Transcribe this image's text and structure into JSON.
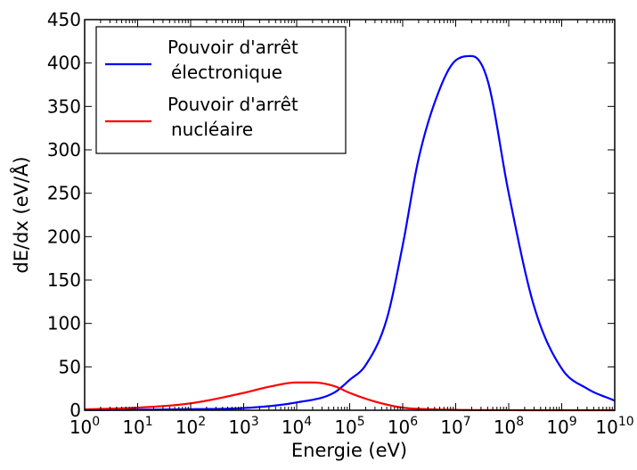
{
  "chart_data": {
    "type": "line",
    "xscale": "log",
    "xlim": [
      1,
      10000000000
    ],
    "ylim": [
      0,
      450
    ],
    "xlabel": "Energie (eV)",
    "ylabel": "dE/dx (eV/Å)",
    "grid": false,
    "legend_position": "top-left",
    "x_tick_base": "10",
    "x_tick_exponents": [
      "0",
      "1",
      "2",
      "3",
      "4",
      "5",
      "6",
      "7",
      "8",
      "9",
      "10"
    ],
    "y_ticks": [
      "0",
      "50",
      "100",
      "150",
      "200",
      "250",
      "300",
      "350",
      "400",
      "450"
    ],
    "series": [
      {
        "name_lines": [
          "Pouvoir d'arrêt",
          "électronique"
        ],
        "color": "#0000ff",
        "x": [
          1,
          10,
          100,
          1000,
          10000,
          50000,
          100000,
          200000,
          500000,
          1000000,
          2000000,
          5000000,
          10000000,
          20000000,
          40000000,
          100000000,
          300000000,
          1000000000,
          3000000000,
          10000000000
        ],
        "y": [
          0.3,
          0.6,
          1.2,
          2.5,
          9,
          20,
          35,
          52,
          105,
          190,
          290,
          370,
          403,
          408,
          380,
          250,
          120,
          48,
          25,
          11
        ]
      },
      {
        "name_lines": [
          "Pouvoir d'arrêt",
          "nucléaire"
        ],
        "color": "#ff0000",
        "x": [
          1,
          10,
          100,
          1000,
          3000,
          10000,
          20000,
          50000,
          100000,
          300000,
          1000000,
          3000000,
          10000000,
          30000000,
          100000000,
          1000000000,
          10000000000
        ],
        "y": [
          1,
          3,
          8,
          20,
          27,
          32,
          32,
          28,
          20,
          10,
          3,
          1.2,
          0.4,
          0.15,
          0.05,
          0,
          0
        ]
      }
    ]
  }
}
